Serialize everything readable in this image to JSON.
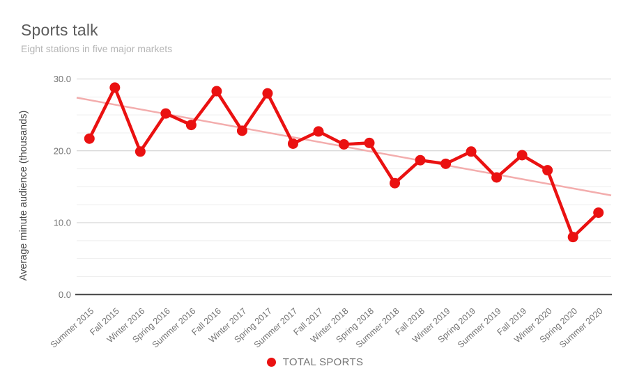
{
  "header": {
    "title": "Sports talk",
    "subtitle": "Eight stations in five major markets"
  },
  "legend": {
    "label": "TOTAL SPORTS"
  },
  "colors": {
    "series_red": "#ea1111",
    "trendline_pink": "#f3adad",
    "major_gridline": "#cccccc",
    "minor_gridline": "#eeeeee",
    "axis_line": "#424242",
    "tick_label": "#757575",
    "title_text": "#5c5c5c",
    "subtitle_text": "#b5b5b5",
    "axis_title_text": "#474747"
  },
  "chart_data": {
    "type": "line",
    "title": "Sports talk",
    "subtitle": "Eight stations in five major markets",
    "xlabel": "",
    "ylabel": "Average minute audience (thousands)",
    "ylim": [
      0,
      30
    ],
    "y_major_ticks": [
      0,
      10,
      20,
      30
    ],
    "y_tick_labels": [
      "0.0",
      "10.0",
      "20.0",
      "30.0"
    ],
    "y_minor_ticks": [
      2.5,
      5,
      7.5,
      12.5,
      15,
      17.5,
      22.5,
      25,
      27.5
    ],
    "grid": true,
    "legend_position": "bottom",
    "categories": [
      "Summer 2015",
      "Fall 2015",
      "Winter 2016",
      "Spring 2016",
      "Summer 2016",
      "Fall 2016",
      "Winter 2017",
      "Spring 2017",
      "Summer 2017",
      "Fall 2017",
      "Winter 2018",
      "Spring 2018",
      "Summer 2018",
      "Fall 2018",
      "Winter 2019",
      "Spring 2019",
      "Summer 2019",
      "Fall 2019",
      "Winter 2020",
      "Spring 2020",
      "Summer 2020"
    ],
    "series": [
      {
        "name": "TOTAL SPORTS",
        "values": [
          21.7,
          28.8,
          19.9,
          25.2,
          23.6,
          28.3,
          22.8,
          28.0,
          21.0,
          22.7,
          20.9,
          21.1,
          15.5,
          18.7,
          18.2,
          19.9,
          16.3,
          19.4,
          17.3,
          8.0,
          11.4
        ]
      }
    ],
    "trendline": {
      "type": "linear",
      "start_value": 27.4,
      "end_value": 13.8
    }
  }
}
